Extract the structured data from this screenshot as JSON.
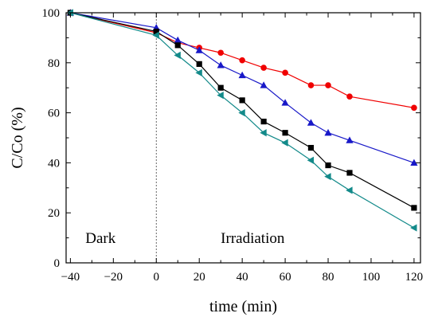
{
  "chart_data": {
    "type": "line",
    "title": "",
    "xlabel": "time (min)",
    "ylabel": "C/Co (%)",
    "xlim": [
      -42,
      123
    ],
    "ylim": [
      0,
      100
    ],
    "xticks": [
      -40,
      -20,
      0,
      20,
      40,
      60,
      80,
      100,
      120
    ],
    "yticks": [
      0,
      20,
      40,
      60,
      80,
      100
    ],
    "xtick_labels": [
      "−40",
      "−20",
      "0",
      "20",
      "40",
      "60",
      "80",
      "100",
      "120"
    ],
    "ytick_labels": [
      "0",
      "20",
      "40",
      "60",
      "80",
      "100"
    ],
    "grid": false,
    "legend": "none",
    "dashed_vline_x": 0,
    "annotations": [
      {
        "text": "Dark",
        "x": -33,
        "y": 8
      },
      {
        "text": "Irradiation",
        "x": 30,
        "y": 8
      }
    ],
    "series": [
      {
        "marker": "circle",
        "color": "#f00000",
        "x": [
          -40,
          0,
          10,
          20,
          30,
          40,
          50,
          60,
          72,
          80,
          90,
          120
        ],
        "y": [
          100,
          92,
          88,
          86,
          84,
          81,
          78,
          76,
          71,
          71,
          66.5,
          62
        ]
      },
      {
        "marker": "triangle-up",
        "color": "#1818c8",
        "x": [
          -40,
          0,
          10,
          20,
          30,
          40,
          50,
          60,
          72,
          80,
          90,
          120
        ],
        "y": [
          100,
          94,
          89,
          85,
          79,
          75,
          71,
          64,
          56,
          52,
          49,
          40
        ]
      },
      {
        "marker": "square",
        "color": "#000000",
        "x": [
          -40,
          0,
          10,
          20,
          30,
          40,
          50,
          60,
          72,
          80,
          90,
          120
        ],
        "y": [
          100,
          92.5,
          87,
          79.5,
          70,
          65,
          56.5,
          52,
          46,
          39,
          36,
          22
        ]
      },
      {
        "marker": "triangle-left",
        "color": "#138a8a",
        "x": [
          -40,
          0,
          10,
          20,
          30,
          40,
          50,
          60,
          72,
          80,
          90,
          120
        ],
        "y": [
          100,
          91,
          83,
          76,
          67,
          60,
          52,
          48,
          41,
          34.5,
          29,
          14
        ]
      }
    ]
  }
}
